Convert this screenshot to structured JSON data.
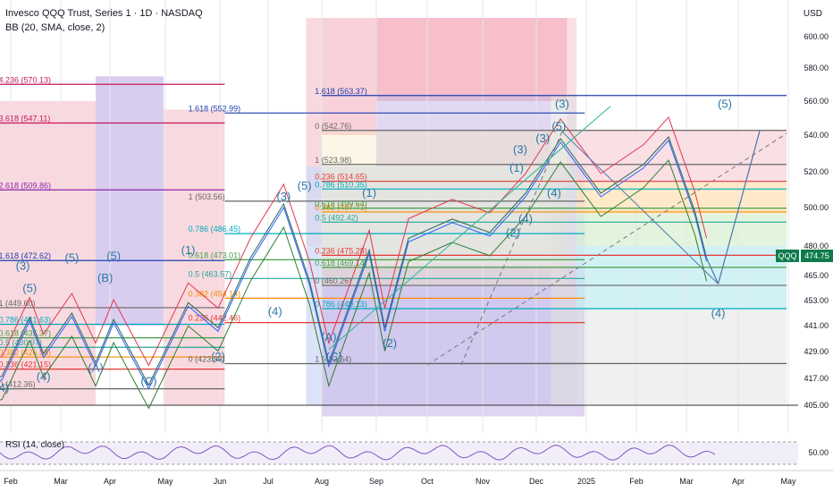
{
  "header": {
    "title": "Invesco QQQ Trust, Series 1 · 1D · NASDAQ",
    "indicator": "BB (20, SMA, close, 2)",
    "currency": "USD",
    "rsi_label": "RSI (14, close)",
    "ticker_tag": "QQQ",
    "last_price": "474.75"
  },
  "colors": {
    "green_tag": "#0f7b4d",
    "pink_zone": "#f7c9d3",
    "blue_zone": "#cfd9f5",
    "purple_zone": "#c9b8e8",
    "red_line": "#e0374c",
    "blue_line": "#2962ff",
    "green_line": "#2e7d32",
    "teal_wave": "#2a78a8"
  },
  "chart_data": {
    "type": "line",
    "y_ticks": [
      600,
      580,
      560,
      540,
      520,
      500,
      480,
      465,
      453,
      441,
      429,
      417,
      405
    ],
    "y_tick_labels": [
      "600.00",
      "580.00",
      "560.00",
      "540.00",
      "520.00",
      "500.00",
      "480.00",
      "465.00",
      "453.00",
      "441.00",
      "429.00",
      "417.00",
      "405.00"
    ],
    "x_ticks": [
      {
        "label": "Feb",
        "date": "2024-02-01"
      },
      {
        "label": "Mar",
        "date": "2024-03-01"
      },
      {
        "label": "Apr",
        "date": "2024-04-01"
      },
      {
        "label": "May",
        "date": "2024-05-01"
      },
      {
        "label": "Jun",
        "date": "2024-06-01"
      },
      {
        "label": "Jul",
        "date": "2024-07-01"
      },
      {
        "label": "Aug",
        "date": "2024-08-01"
      },
      {
        "label": "Sep",
        "date": "2024-09-01"
      },
      {
        "label": "Oct",
        "date": "2024-10-01"
      },
      {
        "label": "Nov",
        "date": "2024-11-01"
      },
      {
        "label": "Dec",
        "date": "2024-12-01"
      },
      {
        "label": "2025",
        "date": "2025-01-01"
      },
      {
        "label": "Feb",
        "date": "2025-02-01"
      },
      {
        "label": "Mar",
        "date": "2025-03-01"
      },
      {
        "label": "Apr",
        "date": "2025-04-01"
      },
      {
        "label": "May",
        "date": "2025-05-01"
      }
    ],
    "rsi_tick": "50.00",
    "last_price": 474.75,
    "fib_sets": [
      {
        "name": "left",
        "levels": [
          {
            "label": "4.236 (570.13)",
            "value": 570.13,
            "color": "#c2185b"
          },
          {
            "label": "3.618 (547.11)",
            "value": 547.11,
            "color": "#c2185b"
          },
          {
            "label": "2.618 (509.86)",
            "value": 509.86,
            "color": "#8e24aa"
          },
          {
            "label": "1.618 (472.62)",
            "value": 472.62,
            "color": "#1e40af"
          },
          {
            "label": "1 (449.60)",
            "value": 449.6,
            "color": "#666666"
          },
          {
            "label": "0.786 (441.63)",
            "value": 441.63,
            "color": "#00acc1"
          },
          {
            "label": "0.618 (435.37)",
            "value": 435.37,
            "color": "#43a047"
          },
          {
            "label": "0.5 (430.97)",
            "value": 430.97,
            "color": "#26a69a"
          },
          {
            "label": "0.382 (426.58)",
            "value": 426.58,
            "color": "#fb8c00"
          },
          {
            "label": "0.236 (421.15)",
            "value": 421.15,
            "color": "#e53935"
          },
          {
            "label": "0 (412.36)",
            "value": 412.36,
            "color": "#666666"
          }
        ]
      },
      {
        "name": "middle",
        "levels": [
          {
            "label": "1.618 (552.99)",
            "value": 552.99,
            "color": "#1e40af"
          },
          {
            "label": "1 (503.56)",
            "value": 503.56,
            "color": "#666666"
          },
          {
            "label": "0.786 (486.45)",
            "value": 486.45,
            "color": "#00acc1"
          },
          {
            "label": "0.618 (473.01)",
            "value": 473.01,
            "color": "#43a047"
          },
          {
            "label": "0.5 (463.57)",
            "value": 463.57,
            "color": "#26a69a"
          },
          {
            "label": "0.382 (454.14)",
            "value": 454.14,
            "color": "#fb8c00"
          },
          {
            "label": "0.236 (442.46)",
            "value": 442.46,
            "color": "#e53935"
          },
          {
            "label": "0 (423.59)",
            "value": 423.59,
            "color": "#666666"
          }
        ]
      },
      {
        "name": "right",
        "levels": [
          {
            "label": "1.618 (563.37)",
            "value": 563.37,
            "color": "#1e40af"
          },
          {
            "label": "0 (542.76)",
            "value": 542.76,
            "color": "#666666"
          },
          {
            "label": "1 (523.98)",
            "value": 523.98,
            "color": "#666666"
          },
          {
            "label": "0.236 (514.65)",
            "value": 514.65,
            "color": "#e53935"
          },
          {
            "label": "0.786 (510.35)",
            "value": 510.35,
            "color": "#00acc1"
          },
          {
            "label": "0.382 (497.71)",
            "value": 497.71,
            "color": "#fb8c00"
          },
          {
            "label": "0.618 (499.64)",
            "value": 499.64,
            "color": "#43a047"
          },
          {
            "label": "0.5 (492.42)",
            "value": 492.42,
            "color": "#26a69a"
          },
          {
            "label": "0.618 (469.14)",
            "value": 469.14,
            "color": "#43a047"
          },
          {
            "label": "0.236 (475.28)",
            "value": 475.28,
            "color": "#e53935"
          },
          {
            "label": "0 (460.26)",
            "value": 460.26,
            "color": "#666666"
          },
          {
            "label": "0.786 (449.13)",
            "value": 449.13,
            "color": "#00acc1"
          },
          {
            "label": "1 (423.64)",
            "value": 423.64,
            "color": "#666666"
          }
        ]
      }
    ],
    "wave_labels": [
      {
        "label": "(4)",
        "date": "2024-01-22",
        "value": 411
      },
      {
        "label": "(3)",
        "date": "2024-02-08",
        "value": 468
      },
      {
        "label": "(5)",
        "date": "2024-02-12",
        "value": 457
      },
      {
        "label": "(4)",
        "date": "2024-02-20",
        "value": 416
      },
      {
        "label": "(5)",
        "date": "2024-03-08",
        "value": 472
      },
      {
        "label": "(A)",
        "date": "2024-03-23",
        "value": 420
      },
      {
        "label": "(B)",
        "date": "2024-03-29",
        "value": 462
      },
      {
        "label": "(5)",
        "date": "2024-04-03",
        "value": 473
      },
      {
        "label": "(C)",
        "date": "2024-04-22",
        "value": 414
      },
      {
        "label": "(1)",
        "date": "2024-05-14",
        "value": 476
      },
      {
        "label": "(2)",
        "date": "2024-05-31",
        "value": 425
      },
      {
        "label": "(3)",
        "date": "2024-07-10",
        "value": 504
      },
      {
        "label": "(5)",
        "date": "2024-07-22",
        "value": 510
      },
      {
        "label": "(4)",
        "date": "2024-07-05",
        "value": 446
      },
      {
        "label": "(A)",
        "date": "2024-08-05",
        "value": 434
      },
      {
        "label": "(C)",
        "date": "2024-08-08",
        "value": 425
      },
      {
        "label": "(1)",
        "date": "2024-08-28",
        "value": 506
      },
      {
        "label": "(2)",
        "date": "2024-09-09",
        "value": 431
      },
      {
        "label": "(1)",
        "date": "2024-11-20",
        "value": 520
      },
      {
        "label": "(2)",
        "date": "2024-11-18",
        "value": 485
      },
      {
        "label": "(3)",
        "date": "2024-11-22",
        "value": 530
      },
      {
        "label": "(4)",
        "date": "2024-11-25",
        "value": 492
      },
      {
        "label": "(3)",
        "date": "2024-12-05",
        "value": 536
      },
      {
        "label": "(4)",
        "date": "2024-12-12",
        "value": 506
      },
      {
        "label": "(5)",
        "date": "2024-12-15",
        "value": 543
      },
      {
        "label": "(3)",
        "date": "2024-12-17",
        "value": 556
      },
      {
        "label": "(4)",
        "date": "2025-03-20",
        "value": 445
      },
      {
        "label": "(5)",
        "date": "2025-03-24",
        "value": 556
      }
    ]
  }
}
